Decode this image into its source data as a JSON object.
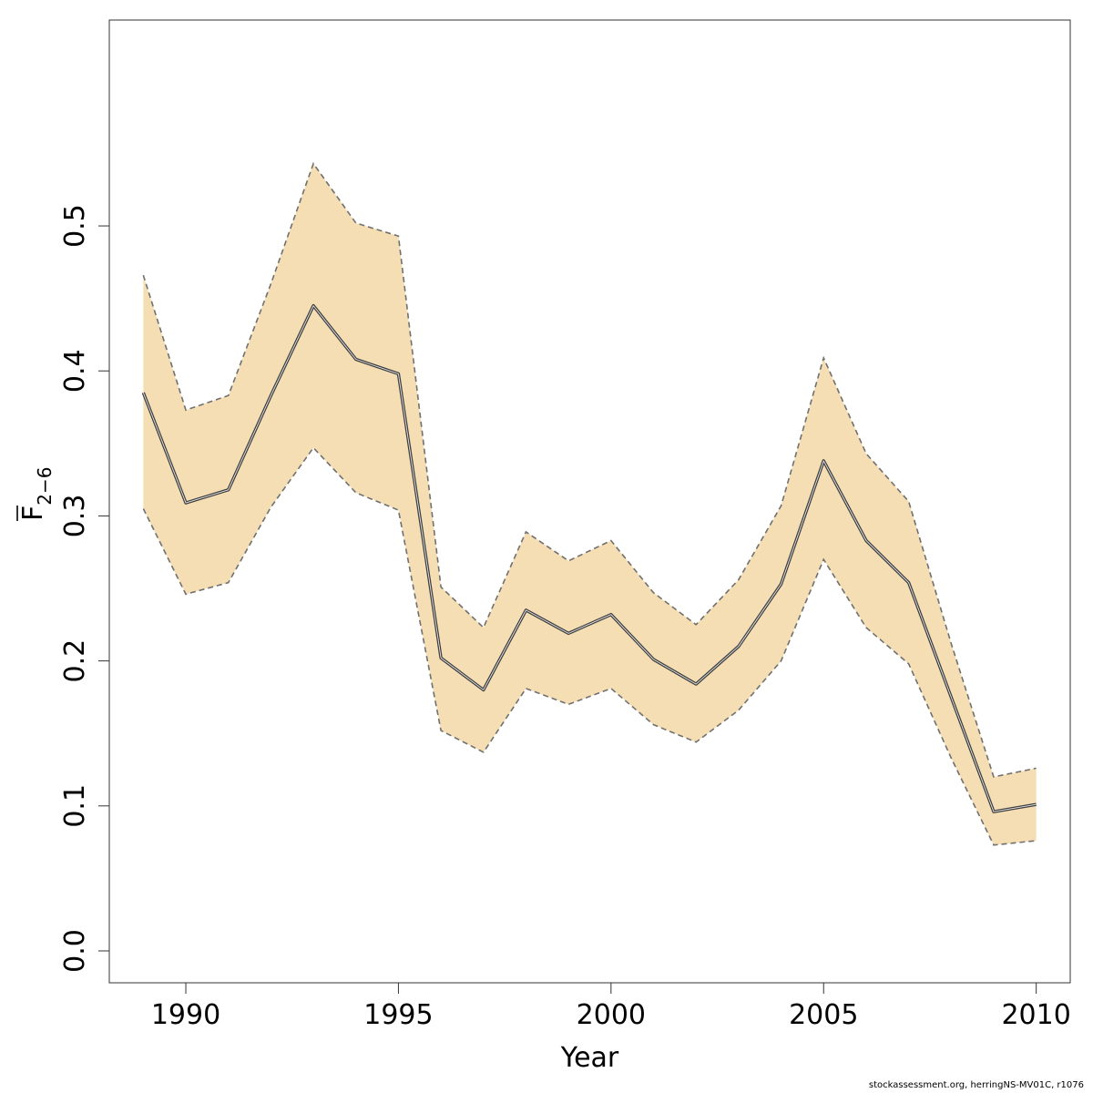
{
  "chart_data": {
    "type": "line",
    "title": "",
    "xlabel": "Year",
    "ylabel": {
      "main": "F",
      "sub": "2−6",
      "overline": true
    },
    "x": [
      1989,
      1990,
      1991,
      1992,
      1993,
      1994,
      1995,
      1996,
      1997,
      1998,
      1999,
      2000,
      2001,
      2002,
      2003,
      2004,
      2005,
      2006,
      2007,
      2008,
      2009,
      2010
    ],
    "series": [
      {
        "role": "estimate",
        "values": [
          0.385,
          0.309,
          0.318,
          0.383,
          0.445,
          0.408,
          0.398,
          0.202,
          0.18,
          0.235,
          0.219,
          0.232,
          0.201,
          0.184,
          0.21,
          0.253,
          0.338,
          0.283,
          0.254,
          0.175,
          0.096,
          0.101
        ]
      },
      {
        "role": "upper",
        "values": [
          0.466,
          0.373,
          0.383,
          0.46,
          0.543,
          0.502,
          0.493,
          0.251,
          0.223,
          0.289,
          0.269,
          0.283,
          0.247,
          0.225,
          0.256,
          0.307,
          0.409,
          0.343,
          0.31,
          0.212,
          0.12,
          0.126
        ]
      },
      {
        "role": "lower",
        "values": [
          0.305,
          0.246,
          0.254,
          0.306,
          0.347,
          0.316,
          0.304,
          0.152,
          0.137,
          0.181,
          0.17,
          0.181,
          0.156,
          0.144,
          0.166,
          0.2,
          0.27,
          0.223,
          0.198,
          0.133,
          0.073,
          0.076
        ]
      }
    ],
    "xlim": [
      1988.2,
      2010.8
    ],
    "ylim": [
      -0.022,
      0.642
    ],
    "xticks": [
      "1990",
      "1995",
      "2000",
      "2005",
      "2010"
    ],
    "yticks": [
      "0.0",
      "0.1",
      "0.2",
      "0.3",
      "0.4",
      "0.5"
    ],
    "colors": {
      "band": "#f5deb3",
      "line": "#3f3f3f",
      "bound": "#707070"
    },
    "grid": false,
    "legend": "none"
  },
  "footer": "stockassessment.org, herringNS-MV01C, r1076"
}
